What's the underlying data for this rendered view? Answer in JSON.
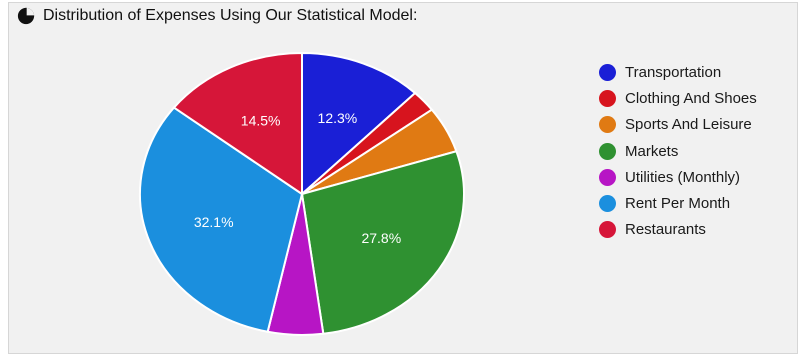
{
  "chart_data": {
    "type": "pie",
    "title": "Distribution of Expenses Using Our Statistical Model:",
    "legend_position": "right",
    "slices": [
      {
        "label": "Transportation",
        "value": 12.3,
        "color": "#1a1fd6",
        "data_label": "12.3%"
      },
      {
        "label": "Clothing And Shoes",
        "value": 2.5,
        "color": "#d7141e",
        "data_label": ""
      },
      {
        "label": "Sports And Leisure",
        "value": 5.3,
        "color": "#e07a13",
        "data_label": ""
      },
      {
        "label": "Markets",
        "value": 27.8,
        "color": "#2f9131",
        "data_label": "27.8%"
      },
      {
        "label": "Utilities (Monthly)",
        "value": 5.5,
        "color": "#b715c5",
        "data_label": ""
      },
      {
        "label": "Rent Per Month",
        "value": 32.1,
        "color": "#1b8fde",
        "data_label": "32.1%"
      },
      {
        "label": "Restaurants",
        "value": 14.5,
        "color": "#d61639",
        "data_label": "14.5%"
      }
    ]
  },
  "header_icon": "pie-chart-icon"
}
